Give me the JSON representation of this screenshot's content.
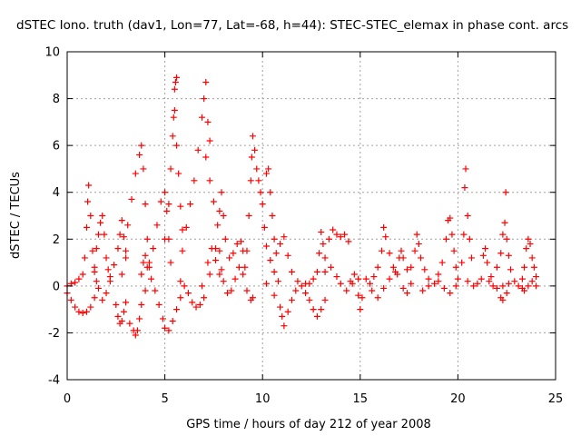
{
  "chart_data": {
    "type": "scatter",
    "title": "dSTEC Iono. truth (dav1, Lon=77, Lat=-68, h=44): STEC-STEC_elemax in phase cont. arcs",
    "xlabel": "GPS time / hours of day 212 of year 2008",
    "ylabel": "dSTEC  / TECUs",
    "xlim": [
      0,
      25
    ],
    "ylim": [
      -4,
      10
    ],
    "xticks": [
      0,
      5,
      10,
      15,
      20,
      25
    ],
    "yticks": [
      -4,
      -2,
      0,
      2,
      4,
      6,
      8,
      10
    ],
    "grid": true,
    "marker": "+",
    "color": "#ff0000",
    "series": [
      {
        "values": [
          [
            0.0,
            0.0
          ],
          [
            0.2,
            0.1
          ],
          [
            0.4,
            0.15
          ],
          [
            0.6,
            0.3
          ],
          [
            0.8,
            0.5
          ],
          [
            0.9,
            1.2
          ],
          [
            1.0,
            2.5
          ],
          [
            1.05,
            3.6
          ],
          [
            1.1,
            4.3
          ],
          [
            1.2,
            3.0
          ],
          [
            1.3,
            1.5
          ],
          [
            1.4,
            0.6
          ],
          [
            1.5,
            0.2
          ],
          [
            0.0,
            -0.3
          ],
          [
            0.2,
            -0.6
          ],
          [
            0.4,
            -0.9
          ],
          [
            0.6,
            -1.1
          ],
          [
            0.8,
            -1.15
          ],
          [
            1.0,
            -1.1
          ],
          [
            1.2,
            -0.9
          ],
          [
            1.4,
            -0.5
          ],
          [
            1.6,
            -0.1
          ],
          [
            1.4,
            0.8
          ],
          [
            1.5,
            1.6
          ],
          [
            1.6,
            2.2
          ],
          [
            1.7,
            2.7
          ],
          [
            1.8,
            3.0
          ],
          [
            1.9,
            2.2
          ],
          [
            2.0,
            1.2
          ],
          [
            2.1,
            0.7
          ],
          [
            2.2,
            0.4
          ],
          [
            1.8,
            -0.6
          ],
          [
            2.0,
            -0.3
          ],
          [
            2.2,
            0.2
          ],
          [
            2.4,
            0.9
          ],
          [
            2.6,
            1.6
          ],
          [
            2.7,
            2.2
          ],
          [
            2.8,
            2.8
          ],
          [
            2.9,
            2.1
          ],
          [
            3.0,
            1.2
          ],
          [
            2.5,
            -0.8
          ],
          [
            2.6,
            -1.3
          ],
          [
            2.7,
            -1.6
          ],
          [
            2.8,
            -1.5
          ],
          [
            2.9,
            -1.1
          ],
          [
            3.0,
            -0.7
          ],
          [
            2.8,
            0.5
          ],
          [
            3.0,
            1.5
          ],
          [
            3.1,
            2.6
          ],
          [
            3.3,
            3.7
          ],
          [
            3.5,
            4.8
          ],
          [
            3.7,
            5.6
          ],
          [
            3.8,
            6.0
          ],
          [
            3.9,
            5.0
          ],
          [
            4.0,
            3.5
          ],
          [
            4.1,
            2.0
          ],
          [
            4.2,
            1.0
          ],
          [
            3.2,
            -1.6
          ],
          [
            3.4,
            -1.9
          ],
          [
            3.5,
            -2.1
          ],
          [
            3.6,
            -1.9
          ],
          [
            3.7,
            -1.4
          ],
          [
            3.8,
            -0.8
          ],
          [
            4.0,
            -0.2
          ],
          [
            3.8,
            0.5
          ],
          [
            3.9,
            1.0
          ],
          [
            4.0,
            1.3
          ],
          [
            4.1,
            0.8
          ],
          [
            4.3,
            0.3
          ],
          [
            4.2,
            0.8
          ],
          [
            4.4,
            1.6
          ],
          [
            4.6,
            2.6
          ],
          [
            4.8,
            3.6
          ],
          [
            5.0,
            4.0
          ],
          [
            5.1,
            3.2
          ],
          [
            5.2,
            2.0
          ],
          [
            5.3,
            1.0
          ],
          [
            4.5,
            -0.2
          ],
          [
            4.7,
            -0.8
          ],
          [
            4.9,
            -1.4
          ],
          [
            5.0,
            -1.8
          ],
          [
            5.2,
            -1.9
          ],
          [
            5.4,
            -1.5
          ],
          [
            5.6,
            -1.0
          ],
          [
            5.8,
            -0.5
          ],
          [
            5.0,
            2.0
          ],
          [
            5.2,
            3.5
          ],
          [
            5.3,
            5.0
          ],
          [
            5.4,
            6.4
          ],
          [
            5.45,
            7.2
          ],
          [
            5.5,
            7.5
          ],
          [
            5.6,
            6.0
          ],
          [
            5.7,
            4.8
          ],
          [
            5.8,
            3.4
          ],
          [
            5.9,
            2.4
          ],
          [
            5.5,
            8.4
          ],
          [
            5.55,
            8.7
          ],
          [
            5.6,
            8.9
          ],
          [
            5.8,
            0.2
          ],
          [
            6.0,
            0.0
          ],
          [
            6.2,
            -0.3
          ],
          [
            6.4,
            -0.7
          ],
          [
            6.6,
            -0.9
          ],
          [
            6.8,
            -0.8
          ],
          [
            7.0,
            -0.5
          ],
          [
            5.9,
            1.5
          ],
          [
            6.1,
            2.5
          ],
          [
            6.3,
            3.5
          ],
          [
            6.5,
            4.5
          ],
          [
            6.7,
            5.8
          ],
          [
            6.9,
            7.2
          ],
          [
            7.0,
            8.0
          ],
          [
            7.1,
            8.7
          ],
          [
            7.2,
            7.0
          ],
          [
            7.3,
            6.2
          ],
          [
            7.1,
            5.5
          ],
          [
            7.3,
            4.5
          ],
          [
            7.5,
            3.6
          ],
          [
            7.7,
            2.6
          ],
          [
            7.8,
            1.5
          ],
          [
            7.9,
            0.7
          ],
          [
            8.0,
            0.2
          ],
          [
            7.2,
            1.0
          ],
          [
            7.4,
            1.6
          ],
          [
            7.6,
            1.1
          ],
          [
            7.8,
            0.5
          ],
          [
            6.9,
            0.0
          ],
          [
            7.3,
            0.5
          ],
          [
            7.6,
            1.6
          ],
          [
            7.8,
            3.2
          ],
          [
            7.9,
            4.0
          ],
          [
            8.0,
            3.0
          ],
          [
            8.1,
            2.0
          ],
          [
            8.3,
            1.2
          ],
          [
            8.5,
            1.4
          ],
          [
            8.7,
            1.8
          ],
          [
            8.9,
            1.9
          ],
          [
            9.0,
            1.5
          ],
          [
            9.1,
            0.8
          ],
          [
            8.2,
            -0.3
          ],
          [
            8.4,
            -0.2
          ],
          [
            8.6,
            0.3
          ],
          [
            8.8,
            0.8
          ],
          [
            9.2,
            1.5
          ],
          [
            9.3,
            3.0
          ],
          [
            9.4,
            4.5
          ],
          [
            9.45,
            5.5
          ],
          [
            9.5,
            6.4
          ],
          [
            9.6,
            5.8
          ],
          [
            9.7,
            5.0
          ],
          [
            9.8,
            4.5
          ],
          [
            9.9,
            4.0
          ],
          [
            10.0,
            3.5
          ],
          [
            10.1,
            2.5
          ],
          [
            10.2,
            1.7
          ],
          [
            10.4,
            1.1
          ],
          [
            10.6,
            0.6
          ],
          [
            10.8,
            0.2
          ],
          [
            9.0,
            0.5
          ],
          [
            9.2,
            -0.2
          ],
          [
            9.4,
            -0.6
          ],
          [
            9.5,
            -0.5
          ],
          [
            10.2,
            4.8
          ],
          [
            10.3,
            5.0
          ],
          [
            10.4,
            4.0
          ],
          [
            10.5,
            3.0
          ],
          [
            10.6,
            2.0
          ],
          [
            10.7,
            1.4
          ],
          [
            10.9,
            1.8
          ],
          [
            11.1,
            2.1
          ],
          [
            11.3,
            1.3
          ],
          [
            11.5,
            0.6
          ],
          [
            10.2,
            0.1
          ],
          [
            10.6,
            -0.4
          ],
          [
            10.9,
            -0.9
          ],
          [
            11.0,
            -1.3
          ],
          [
            11.1,
            -1.7
          ],
          [
            11.3,
            -1.1
          ],
          [
            11.5,
            -0.6
          ],
          [
            11.7,
            -0.2
          ],
          [
            11.8,
            0.2
          ],
          [
            12.0,
            0.0
          ],
          [
            12.2,
            0.1
          ],
          [
            12.4,
            0.1
          ],
          [
            12.6,
            0.3
          ],
          [
            12.8,
            0.6
          ],
          [
            12.9,
            1.4
          ],
          [
            13.0,
            2.3
          ],
          [
            13.1,
            1.8
          ],
          [
            13.2,
            1.2
          ],
          [
            12.2,
            -0.3
          ],
          [
            12.4,
            -0.6
          ],
          [
            12.6,
            -1.0
          ],
          [
            12.8,
            -1.3
          ],
          [
            13.0,
            -1.0
          ],
          [
            13.2,
            -0.6
          ],
          [
            13.4,
            2.0
          ],
          [
            13.6,
            2.4
          ],
          [
            13.8,
            2.2
          ],
          [
            14.0,
            2.1
          ],
          [
            14.2,
            2.2
          ],
          [
            14.4,
            1.9
          ],
          [
            13.2,
            0.6
          ],
          [
            13.5,
            0.8
          ],
          [
            13.8,
            0.4
          ],
          [
            14.0,
            0.1
          ],
          [
            14.3,
            -0.2
          ],
          [
            14.6,
            0.1
          ],
          [
            14.9,
            0.3
          ],
          [
            14.5,
            0.2
          ],
          [
            14.7,
            0.5
          ],
          [
            14.9,
            -0.4
          ],
          [
            15.0,
            -1.0
          ],
          [
            15.1,
            -0.5
          ],
          [
            15.3,
            0.3
          ],
          [
            15.5,
            0.1
          ],
          [
            15.7,
            0.4
          ],
          [
            15.9,
            0.8
          ],
          [
            16.1,
            1.5
          ],
          [
            16.2,
            2.5
          ],
          [
            16.3,
            2.1
          ],
          [
            16.5,
            1.4
          ],
          [
            16.7,
            0.8
          ],
          [
            16.9,
            0.5
          ],
          [
            15.6,
            -0.2
          ],
          [
            15.9,
            -0.5
          ],
          [
            16.2,
            -0.1
          ],
          [
            16.5,
            0.3
          ],
          [
            16.8,
            0.6
          ],
          [
            17.0,
            1.2
          ],
          [
            17.1,
            1.5
          ],
          [
            17.2,
            1.2
          ],
          [
            17.4,
            0.7
          ],
          [
            17.2,
            -0.1
          ],
          [
            17.4,
            -0.3
          ],
          [
            17.6,
            0.1
          ],
          [
            17.6,
            0.8
          ],
          [
            17.8,
            1.5
          ],
          [
            17.9,
            2.2
          ],
          [
            18.0,
            1.8
          ],
          [
            18.1,
            1.2
          ],
          [
            18.3,
            0.7
          ],
          [
            18.5,
            0.3
          ],
          [
            18.2,
            -0.2
          ],
          [
            18.5,
            0.0
          ],
          [
            18.8,
            0.1
          ],
          [
            19.0,
            0.2
          ],
          [
            19.0,
            0.5
          ],
          [
            19.2,
            1.0
          ],
          [
            19.4,
            2.0
          ],
          [
            19.5,
            2.8
          ],
          [
            19.6,
            2.9
          ],
          [
            19.7,
            2.2
          ],
          [
            19.8,
            1.5
          ],
          [
            19.9,
            0.8
          ],
          [
            20.0,
            0.3
          ],
          [
            19.3,
            -0.1
          ],
          [
            19.6,
            -0.3
          ],
          [
            19.9,
            0.0
          ],
          [
            20.2,
            1.0
          ],
          [
            20.3,
            2.2
          ],
          [
            20.35,
            4.2
          ],
          [
            20.4,
            5.0
          ],
          [
            20.5,
            3.0
          ],
          [
            20.6,
            2.0
          ],
          [
            20.7,
            1.2
          ],
          [
            20.5,
            0.2
          ],
          [
            20.8,
            0.0
          ],
          [
            21.0,
            0.1
          ],
          [
            21.2,
            0.3
          ],
          [
            21.3,
            1.3
          ],
          [
            21.4,
            1.6
          ],
          [
            21.5,
            1.0
          ],
          [
            21.7,
            0.4
          ],
          [
            21.6,
            0.2
          ],
          [
            21.8,
            0.0
          ],
          [
            22.0,
            -0.1
          ],
          [
            22.2,
            -0.5
          ],
          [
            22.3,
            -0.6
          ],
          [
            22.5,
            -0.3
          ],
          [
            22.0,
            0.8
          ],
          [
            22.2,
            1.4
          ],
          [
            22.3,
            2.2
          ],
          [
            22.4,
            2.7
          ],
          [
            22.45,
            4.0
          ],
          [
            22.5,
            2.0
          ],
          [
            22.6,
            1.3
          ],
          [
            22.7,
            0.7
          ],
          [
            22.3,
            0.0
          ],
          [
            22.6,
            0.1
          ],
          [
            22.9,
            0.2
          ],
          [
            23.1,
            0.0
          ],
          [
            23.3,
            -0.1
          ],
          [
            23.3,
            0.3
          ],
          [
            23.4,
            0.8
          ],
          [
            23.5,
            1.6
          ],
          [
            23.6,
            2.0
          ],
          [
            23.7,
            1.8
          ],
          [
            23.8,
            1.2
          ],
          [
            23.9,
            0.8
          ],
          [
            24.0,
            0.4
          ],
          [
            23.4,
            -0.2
          ],
          [
            23.6,
            0.0
          ],
          [
            23.8,
            0.2
          ],
          [
            24.0,
            0.0
          ]
        ]
      }
    ]
  }
}
